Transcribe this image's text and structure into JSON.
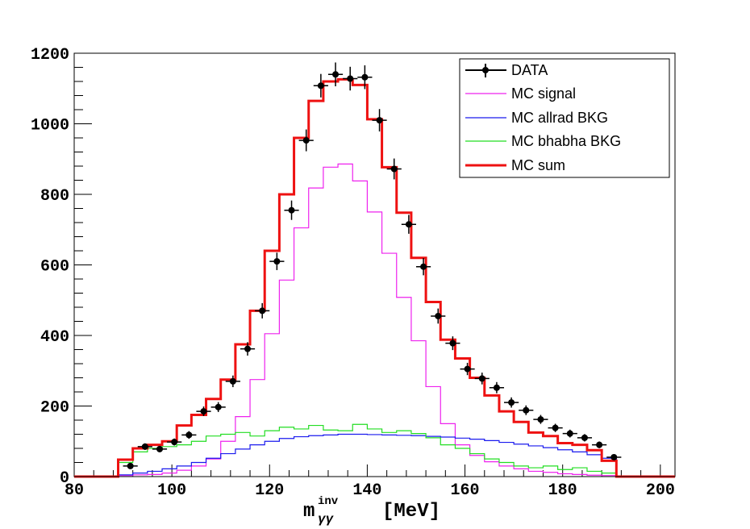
{
  "chart_data": {
    "type": "histogram",
    "title": "",
    "xlabel": {
      "main": "m",
      "superscript": "inv",
      "subscript": "γγ",
      "unit": "[MeV]"
    },
    "ylabel": "",
    "xlim": [
      80,
      203
    ],
    "ylim": [
      0,
      1200
    ],
    "grid": false,
    "legend_position": "top-right",
    "x_ticks": [
      80,
      100,
      120,
      140,
      160,
      180,
      200
    ],
    "y_ticks": [
      0,
      200,
      400,
      600,
      800,
      1000,
      1200
    ],
    "bin_edges": [
      89,
      92,
      95,
      98,
      101,
      104,
      107,
      110,
      113,
      116,
      119,
      122,
      125,
      128,
      131,
      134,
      137,
      140,
      143,
      146,
      149,
      152,
      155,
      158,
      161,
      164,
      167,
      170,
      173,
      176,
      179,
      182,
      185,
      188,
      191
    ],
    "series": [
      {
        "name": "DATA",
        "kind": "points",
        "color": "#000000",
        "x": [
          91.5,
          94.5,
          97.5,
          100.5,
          103.5,
          106.5,
          109.5,
          112.5,
          115.5,
          118.5,
          121.5,
          124.5,
          127.5,
          130.5,
          133.5,
          136.5,
          139.5,
          142.5,
          145.5,
          148.5,
          151.5,
          154.5,
          157.5,
          160.5,
          163.5,
          166.5,
          169.5,
          172.5,
          175.5,
          178.5,
          181.5,
          184.5,
          187.5,
          190.5
        ],
        "values": [
          30,
          85,
          78,
          98,
          118,
          185,
          197,
          270,
          362,
          470,
          610,
          755,
          953,
          1108,
          1140,
          1128,
          1132,
          1010,
          872,
          715,
          595,
          455,
          378,
          305,
          278,
          252,
          210,
          188,
          162,
          138,
          122,
          110,
          90,
          55
        ]
      },
      {
        "name": "MC signal",
        "kind": "step",
        "color": "#ee22ee",
        "values": [
          3,
          5,
          6,
          10,
          18,
          30,
          50,
          100,
          170,
          275,
          405,
          557,
          705,
          818,
          877,
          886,
          838,
          750,
          633,
          508,
          385,
          255,
          150,
          90,
          60,
          42,
          30,
          22,
          15,
          12,
          8,
          6,
          4,
          3
        ]
      },
      {
        "name": "MC allrad BKG",
        "kind": "step",
        "color": "#1a1aee",
        "values": [
          5,
          10,
          15,
          22,
          30,
          40,
          52,
          65,
          78,
          90,
          100,
          108,
          113,
          116,
          118,
          120,
          120,
          119,
          118,
          117,
          116,
          114,
          112,
          109,
          106,
          102,
          97,
          92,
          87,
          82,
          76,
          70,
          62,
          52
        ]
      },
      {
        "name": "MC bhabha BKG",
        "kind": "step",
        "color": "#22dd22",
        "values": [
          40,
          70,
          80,
          85,
          90,
          100,
          115,
          120,
          125,
          115,
          130,
          140,
          135,
          145,
          132,
          130,
          148,
          135,
          125,
          130,
          122,
          110,
          90,
          80,
          65,
          50,
          40,
          30,
          25,
          30,
          20,
          25,
          15,
          10
        ]
      },
      {
        "name": "MC sum",
        "kind": "step",
        "color": "#ee1111",
        "values": [
          48,
          80,
          90,
          100,
          145,
          175,
          220,
          275,
          375,
          470,
          640,
          800,
          960,
          1065,
          1120,
          1126,
          1110,
          1013,
          877,
          748,
          620,
          495,
          388,
          335,
          280,
          230,
          185,
          155,
          125,
          115,
          95,
          90,
          75,
          45
        ]
      }
    ]
  }
}
